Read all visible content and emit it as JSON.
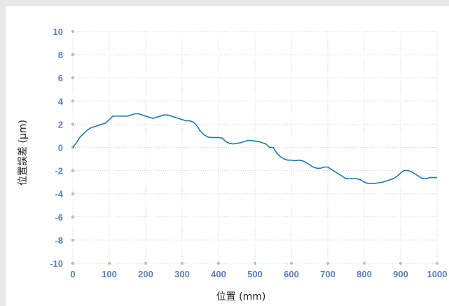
{
  "chart_data": {
    "type": "line",
    "xlabel": "位置 (mm)",
    "ylabel": "位置誤差 (µm)",
    "xlim": [
      0,
      1000
    ],
    "ylim": [
      -10,
      10
    ],
    "x_ticks": [
      0,
      100,
      200,
      300,
      400,
      500,
      600,
      700,
      800,
      900,
      1000
    ],
    "x_tick_labels": [
      "0",
      "100",
      "200",
      "300",
      "400",
      "500",
      "600",
      "700",
      "800",
      "900",
      "1000"
    ],
    "y_ticks": [
      10,
      8,
      6,
      4,
      2,
      0,
      -2,
      -4,
      -6,
      -8,
      -10
    ],
    "y_tick_labels": [
      "10",
      "8",
      "6",
      "4",
      "2",
      "0",
      "-2",
      "-4",
      "-6",
      "-8",
      "-10"
    ],
    "grid": "dotted",
    "series_color": "#1f77b4",
    "tick_color": "#5b7fb8",
    "series": [
      {
        "x": [
          0,
          10,
          20,
          30,
          40,
          50,
          60,
          70,
          80,
          90,
          100,
          110,
          120,
          130,
          140,
          150,
          160,
          170,
          180,
          190,
          200,
          210,
          220,
          230,
          240,
          250,
          260,
          270,
          280,
          290,
          300,
          310,
          320,
          330,
          340,
          350,
          360,
          370,
          380,
          390,
          400,
          410,
          420,
          430,
          440,
          450,
          460,
          470,
          480,
          490,
          500,
          510,
          520,
          530,
          540,
          550,
          560,
          570,
          580,
          590,
          600,
          610,
          620,
          630,
          640,
          650,
          660,
          670,
          680,
          690,
          700,
          710,
          720,
          730,
          740,
          750,
          760,
          770,
          780,
          790,
          800,
          810,
          820,
          830,
          840,
          850,
          860,
          870,
          880,
          890,
          900,
          910,
          920,
          930,
          940,
          950,
          960,
          970,
          980,
          990,
          1000
        ],
        "values": [
          0.0,
          0.4,
          0.9,
          1.2,
          1.5,
          1.7,
          1.8,
          1.9,
          2.0,
          2.1,
          2.4,
          2.7,
          2.7,
          2.7,
          2.7,
          2.7,
          2.8,
          2.9,
          2.9,
          2.8,
          2.7,
          2.6,
          2.5,
          2.6,
          2.7,
          2.8,
          2.8,
          2.7,
          2.6,
          2.5,
          2.4,
          2.3,
          2.3,
          2.2,
          1.9,
          1.4,
          1.1,
          0.9,
          0.85,
          0.85,
          0.85,
          0.8,
          0.5,
          0.35,
          0.3,
          0.35,
          0.4,
          0.5,
          0.6,
          0.6,
          0.55,
          0.5,
          0.4,
          0.3,
          0.0,
          0.0,
          -0.5,
          -0.8,
          -1.0,
          -1.1,
          -1.1,
          -1.15,
          -1.1,
          -1.15,
          -1.3,
          -1.5,
          -1.7,
          -1.8,
          -1.8,
          -1.7,
          -1.7,
          -1.9,
          -2.1,
          -2.3,
          -2.5,
          -2.7,
          -2.7,
          -2.7,
          -2.7,
          -2.8,
          -3.0,
          -3.1,
          -3.1,
          -3.1,
          -3.05,
          -3.0,
          -2.9,
          -2.8,
          -2.7,
          -2.5,
          -2.2,
          -2.0,
          -2.0,
          -2.1,
          -2.3,
          -2.5,
          -2.7,
          -2.7,
          -2.6,
          -2.6,
          -2.6
        ]
      }
    ]
  }
}
